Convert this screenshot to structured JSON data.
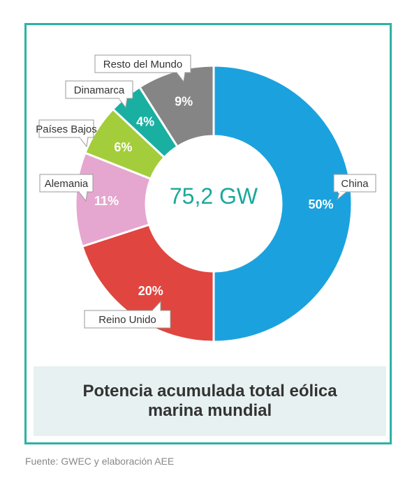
{
  "chart_data": {
    "type": "pie",
    "variant": "donut",
    "total_label": "75,2 GW",
    "title": "Potencia acumulada total eólica marina mundial",
    "source": "Fuente: GWEC y elaboración AEE",
    "slices": [
      {
        "name": "China",
        "value": 50,
        "label": "50%",
        "color": "#1ba2de"
      },
      {
        "name": "Reino Unido",
        "value": 20,
        "label": "20%",
        "color": "#e0463f"
      },
      {
        "name": "Alemania",
        "value": 11,
        "label": "11%",
        "color": "#e5a7cf"
      },
      {
        "name": "Países Bajos",
        "value": 6,
        "label": "6%",
        "color": "#a3cd3a"
      },
      {
        "name": "Dinamarca",
        "value": 4,
        "label": "4%",
        "color": "#19b0a1"
      },
      {
        "name": "Resto del Mundo",
        "value": 9,
        "label": "9%",
        "color": "#858585"
      }
    ]
  }
}
